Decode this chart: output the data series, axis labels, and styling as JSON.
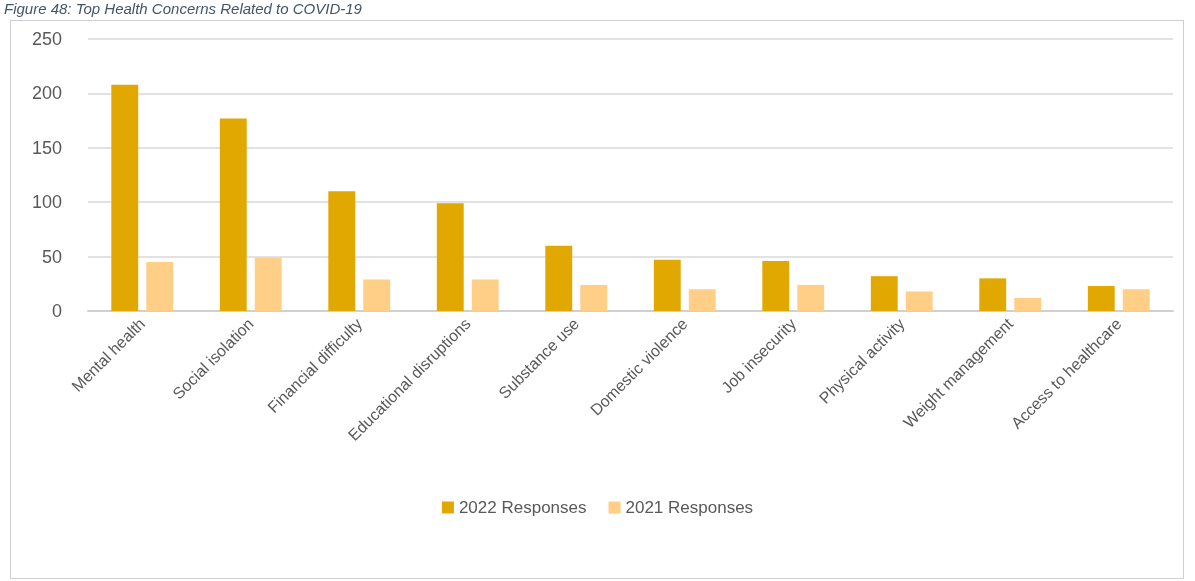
{
  "chart_data": {
    "type": "bar",
    "title": "Figure 48: Top Health Concerns Related to COVID-19",
    "categories": [
      "Mental health",
      "Social isolation",
      "Financial difficulty",
      "Educational disruptions",
      "Substance use",
      "Domestic violence",
      "Job insecurity",
      "Physical activity",
      "Weight management",
      "Access to healthcare"
    ],
    "series": [
      {
        "name": "2022 Responses",
        "color": "#e0a800",
        "values": [
          208,
          177,
          110,
          99,
          60,
          47,
          46,
          32,
          30,
          23
        ]
      },
      {
        "name": "2021 Responses",
        "color": "#ffcf87",
        "values": [
          45,
          49,
          29,
          29,
          24,
          20,
          24,
          18,
          12,
          20
        ]
      }
    ],
    "ylim": [
      0,
      250
    ],
    "yticks": [
      0,
      50,
      100,
      150,
      200,
      250
    ],
    "grid": "y",
    "legend": "bottom"
  }
}
